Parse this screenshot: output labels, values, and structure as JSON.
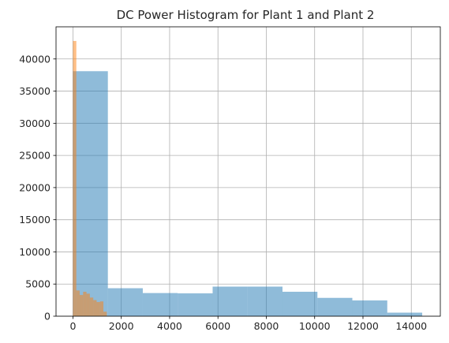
{
  "chart_data": {
    "type": "bar",
    "title": "DC Power Histogram for Plant 1 and Plant 2",
    "xlabel": "",
    "ylabel": "",
    "xlim": [
      -700,
      15200
    ],
    "ylim": [
      0,
      45000
    ],
    "xticks": [
      0,
      2000,
      4000,
      6000,
      8000,
      10000,
      12000,
      14000
    ],
    "yticks": [
      0,
      5000,
      10000,
      15000,
      20000,
      25000,
      30000,
      35000,
      40000
    ],
    "grid": true,
    "legend": "none",
    "series": [
      {
        "color": "#1f77b4",
        "alpha": 0.5,
        "bins": [
          {
            "x0": 0,
            "x1": 1445,
            "count": 38100
          },
          {
            "x0": 1445,
            "x1": 2890,
            "count": 4350
          },
          {
            "x0": 2890,
            "x1": 4335,
            "count": 3600
          },
          {
            "x0": 4335,
            "x1": 5780,
            "count": 3550
          },
          {
            "x0": 5780,
            "x1": 7225,
            "count": 4600
          },
          {
            "x0": 7225,
            "x1": 8670,
            "count": 4600
          },
          {
            "x0": 8670,
            "x1": 10115,
            "count": 3800
          },
          {
            "x0": 10115,
            "x1": 11560,
            "count": 2850
          },
          {
            "x0": 11560,
            "x1": 13005,
            "count": 2450
          },
          {
            "x0": 13005,
            "x1": 14450,
            "count": 550
          }
        ]
      },
      {
        "color": "#ff7f0e",
        "alpha": 0.5,
        "bins": [
          {
            "x0": 0,
            "x1": 140,
            "count": 42800
          },
          {
            "x0": 140,
            "x1": 280,
            "count": 4000
          },
          {
            "x0": 280,
            "x1": 420,
            "count": 3300
          },
          {
            "x0": 420,
            "x1": 560,
            "count": 3800
          },
          {
            "x0": 560,
            "x1": 700,
            "count": 3500
          },
          {
            "x0": 700,
            "x1": 840,
            "count": 2900
          },
          {
            "x0": 840,
            "x1": 980,
            "count": 2500
          },
          {
            "x0": 980,
            "x1": 1120,
            "count": 2200
          },
          {
            "x0": 1120,
            "x1": 1260,
            "count": 2300
          },
          {
            "x0": 1260,
            "x1": 1400,
            "count": 700
          }
        ]
      }
    ]
  }
}
